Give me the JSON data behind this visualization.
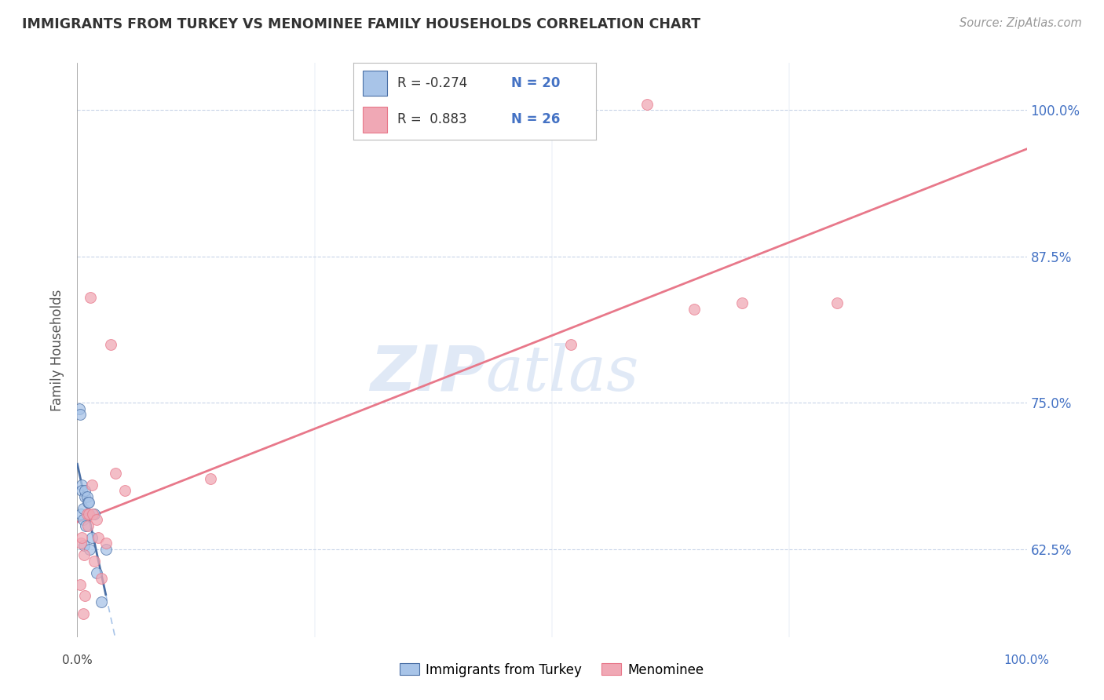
{
  "title": "IMMIGRANTS FROM TURKEY VS MENOMINEE FAMILY HOUSEHOLDS CORRELATION CHART",
  "source": "Source: ZipAtlas.com",
  "ylabel": "Family Households",
  "y_ticks": [
    62.5,
    75.0,
    87.5,
    100.0
  ],
  "y_tick_labels": [
    "62.5%",
    "75.0%",
    "87.5%",
    "100.0%"
  ],
  "blue_points_x": [
    0.2,
    0.3,
    0.4,
    0.5,
    0.5,
    0.6,
    0.6,
    0.7,
    0.8,
    0.8,
    0.9,
    1.0,
    1.1,
    1.2,
    1.3,
    1.5,
    1.8,
    2.0,
    2.5,
    3.0
  ],
  "blue_points_y": [
    74.5,
    74.0,
    65.5,
    68.0,
    67.5,
    65.0,
    66.0,
    62.8,
    67.0,
    67.5,
    64.5,
    67.0,
    66.5,
    66.5,
    62.5,
    63.5,
    65.5,
    60.5,
    58.0,
    62.5
  ],
  "pink_points_x": [
    0.3,
    0.4,
    0.5,
    0.6,
    0.7,
    0.8,
    1.0,
    1.1,
    1.2,
    1.4,
    1.5,
    1.6,
    1.8,
    2.0,
    2.2,
    2.5,
    3.0,
    3.5,
    4.0,
    5.0,
    14.0,
    52.0,
    60.0,
    65.0,
    70.0,
    80.0
  ],
  "pink_points_y": [
    59.5,
    63.0,
    63.5,
    57.0,
    62.0,
    58.5,
    65.5,
    64.5,
    65.5,
    84.0,
    68.0,
    65.5,
    61.5,
    65.0,
    63.5,
    60.0,
    63.0,
    80.0,
    69.0,
    67.5,
    68.5,
    80.0,
    100.5,
    83.0,
    83.5,
    83.5
  ],
  "blue_line_color": "#4a6fa5",
  "pink_line_color": "#e8788a",
  "blue_dot_facecolor": "#a8c4e8",
  "pink_dot_facecolor": "#f0a8b5",
  "dot_alpha": 0.75,
  "dot_size": 100,
  "watermark_zip": "ZIP",
  "watermark_atlas": "atlas",
  "watermark_color": "#c8d8f0",
  "background_color": "#ffffff",
  "grid_color": "#c8d4e8",
  "xlim": [
    0,
    100
  ],
  "ylim": [
    55,
    104
  ],
  "legend_r_blue": "R = -0.274",
  "legend_n_blue": "N = 20",
  "legend_r_pink": "R =  0.883",
  "legend_n_pink": "N = 26"
}
